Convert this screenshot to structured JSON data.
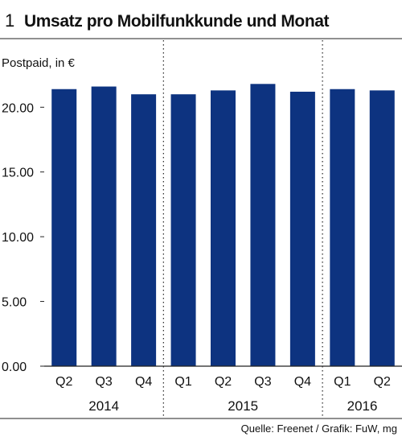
{
  "header": {
    "number": "1",
    "title": "Umsatz pro Mobilfunkkunde und Monat"
  },
  "source": "Quelle: Freenet / Grafik: FuW, mg",
  "colors": {
    "bar": "#0d3380",
    "rule": "#222222"
  },
  "chart_data": {
    "type": "bar",
    "title": "Umsatz pro Mobilfunkkunde und Monat",
    "unit_label": "Postpaid, in €",
    "categories": [
      "Q2",
      "Q3",
      "Q4",
      "Q1",
      "Q2",
      "Q3",
      "Q4",
      "Q1",
      "Q2"
    ],
    "groups": [
      {
        "label": "2014",
        "start": 0,
        "count": 3
      },
      {
        "label": "2015",
        "start": 3,
        "count": 4
      },
      {
        "label": "2016",
        "start": 7,
        "count": 2
      }
    ],
    "values": [
      21.4,
      21.6,
      21.0,
      21.0,
      21.3,
      21.8,
      21.2,
      21.4,
      21.3
    ],
    "ylim": [
      0,
      23
    ],
    "yticks": [
      {
        "value": 0,
        "label": "0.00"
      },
      {
        "value": 5,
        "label": "5.00"
      },
      {
        "value": 10,
        "label": "10.00"
      },
      {
        "value": 15,
        "label": "15.00"
      },
      {
        "value": 20,
        "label": "20.00"
      }
    ],
    "grid": false,
    "legend": "none"
  }
}
